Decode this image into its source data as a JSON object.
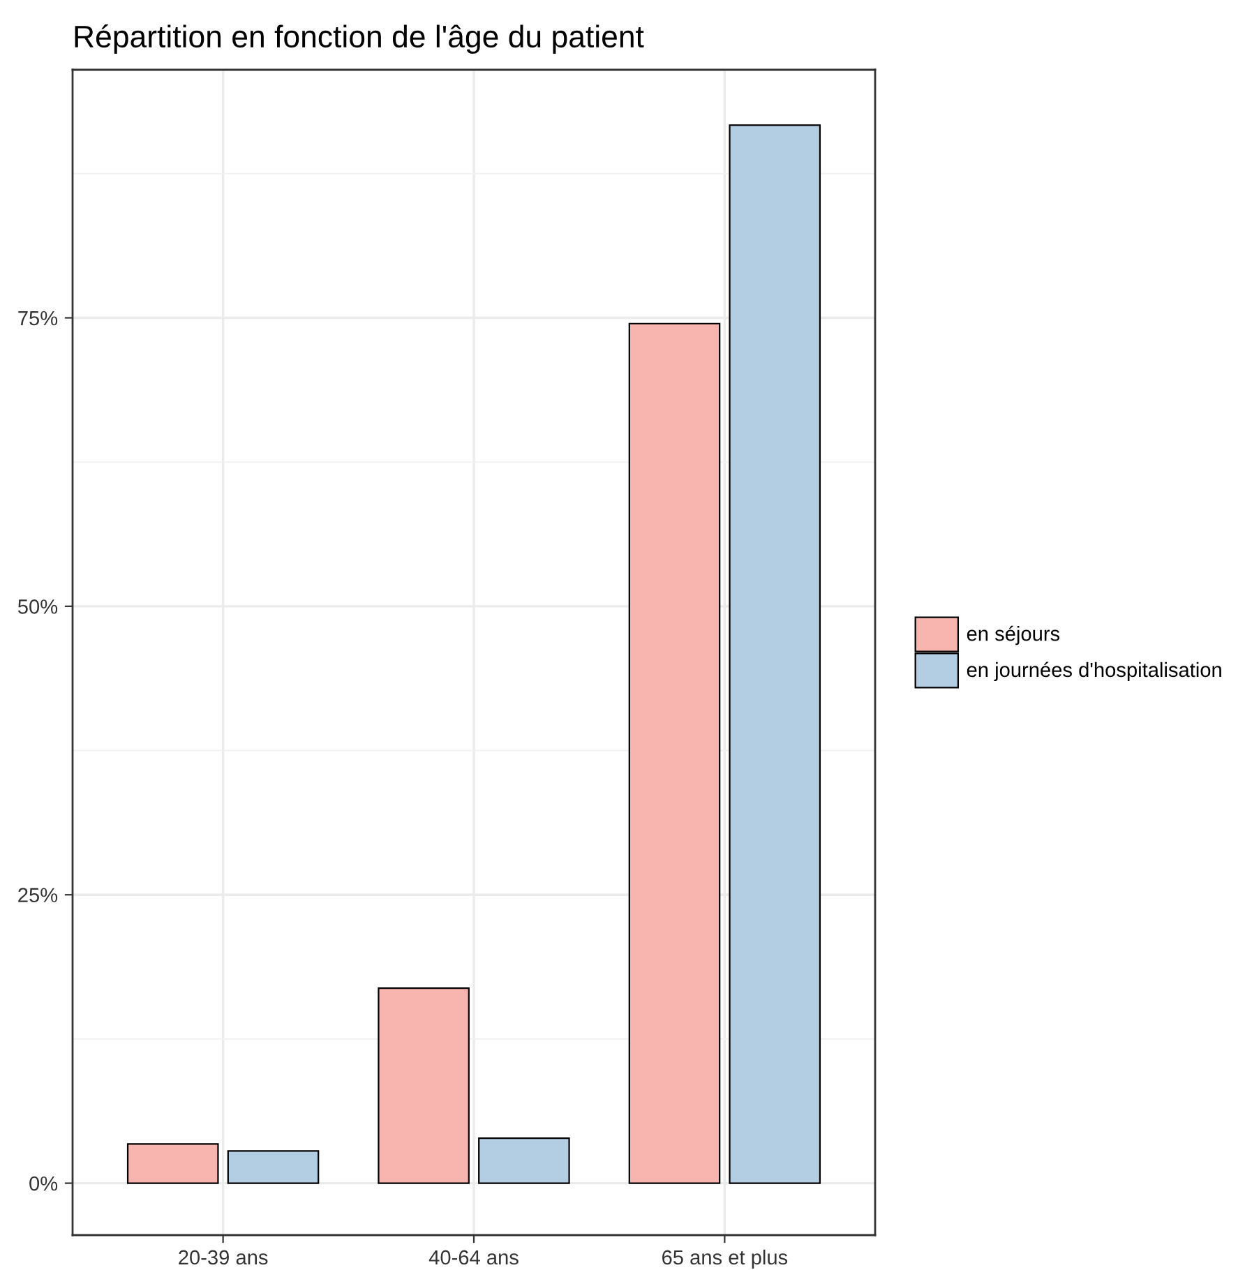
{
  "chart_data": {
    "type": "bar",
    "title": "Répartition en fonction de l'âge du patient",
    "categories": [
      "20-39 ans",
      "40-64 ans",
      "65 ans et plus"
    ],
    "series": [
      {
        "name": "en séjours",
        "color": "#f8b4ae",
        "values": [
          3.4,
          16.9,
          74.5
        ]
      },
      {
        "name": "en journées d'hospitalisation",
        "color": "#b3cde3",
        "values": [
          2.8,
          3.9,
          91.7
        ]
      }
    ],
    "ylim": [
      -4.5,
      96.5
    ],
    "yticks": [
      {
        "value": 0,
        "label": "0%"
      },
      {
        "value": 12.5,
        "label": null
      },
      {
        "value": 25,
        "label": "25%"
      },
      {
        "value": 37.5,
        "label": null
      },
      {
        "value": 50,
        "label": "50%"
      },
      {
        "value": 62.5,
        "label": null
      },
      {
        "value": 75,
        "label": "75%"
      },
      {
        "value": 87.5,
        "label": null
      }
    ],
    "grid": true,
    "legend": "right"
  }
}
